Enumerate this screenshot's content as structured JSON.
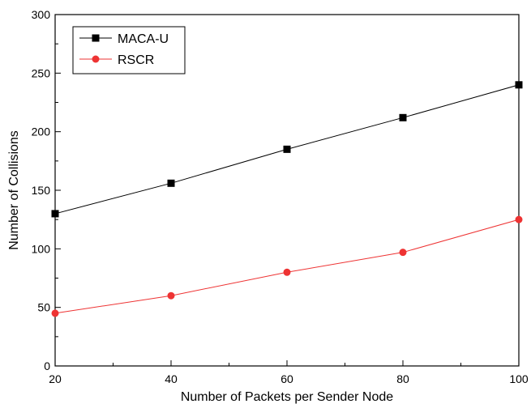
{
  "chart_data": {
    "type": "line",
    "xlabel": "Number of Packets per Sender Node",
    "ylabel": "Number of Collisions",
    "xlim": [
      20,
      100
    ],
    "ylim": [
      0,
      300
    ],
    "x_ticks": [
      20,
      40,
      60,
      80,
      100
    ],
    "y_ticks": [
      0,
      50,
      100,
      150,
      200,
      250,
      300
    ],
    "x_minor_step": 10,
    "y_minor_step": 25,
    "grid": false,
    "legend_position": "top-left",
    "series": [
      {
        "name": "MACA-U",
        "color": "#000000",
        "marker": "square",
        "x": [
          20,
          40,
          60,
          80,
          100
        ],
        "values": [
          130,
          156,
          185,
          212,
          240
        ]
      },
      {
        "name": "RSCR",
        "color": "#ee3333",
        "marker": "circle",
        "x": [
          20,
          40,
          60,
          80,
          100
        ],
        "values": [
          45,
          60,
          80,
          97,
          125
        ]
      }
    ]
  }
}
